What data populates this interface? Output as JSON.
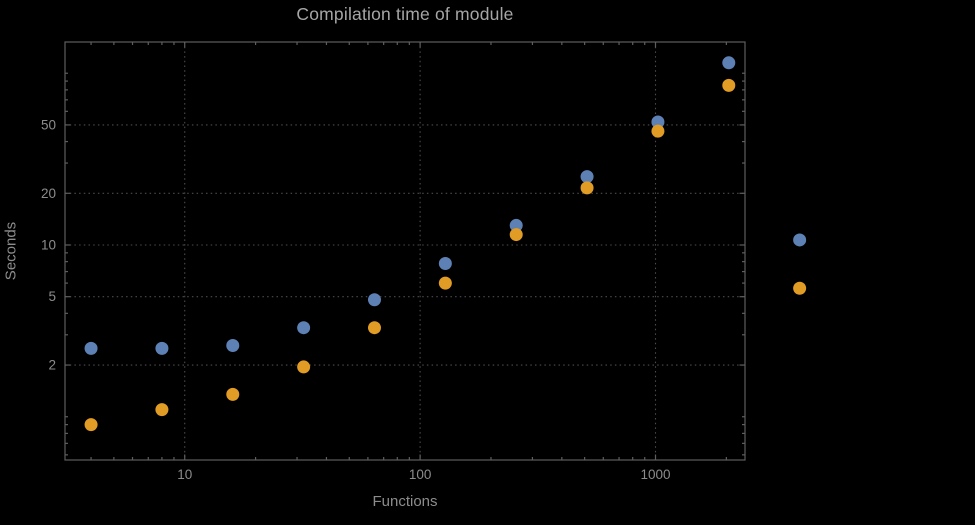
{
  "chart_data": {
    "type": "scatter",
    "title": "Compilation time of module",
    "xlabel": "Functions",
    "ylabel": "Seconds",
    "x_scale": "log",
    "y_scale": "log",
    "xlim": [
      3.1,
      2400
    ],
    "ylim": [
      0.56,
      152
    ],
    "grid": true,
    "legend": "none",
    "x_ticks": [
      {
        "value": 10,
        "label": "10"
      },
      {
        "value": 100,
        "label": "100"
      },
      {
        "value": 1000,
        "label": "1000"
      }
    ],
    "y_ticks": [
      {
        "value": 2,
        "label": "2"
      },
      {
        "value": 5,
        "label": "5"
      },
      {
        "value": 10,
        "label": "10"
      },
      {
        "value": 20,
        "label": "20"
      },
      {
        "value": 50,
        "label": "50"
      }
    ],
    "x": [
      4,
      8,
      16,
      32,
      64,
      128,
      256,
      512,
      1024,
      2048,
      4096
    ],
    "series": [
      {
        "name": "blue",
        "color": "#5E81B5",
        "values": [
          2.5,
          2.5,
          2.6,
          3.3,
          4.8,
          7.8,
          13,
          25,
          52,
          115,
          10.7
        ]
      },
      {
        "name": "orange",
        "color": "#E09C24",
        "values": [
          0.9,
          1.1,
          1.35,
          1.95,
          3.3,
          6.0,
          11.5,
          21.5,
          46,
          85,
          5.6
        ]
      }
    ],
    "marker_radius_px": 6.5
  },
  "colors": {
    "background": "#000000",
    "frame": "#5e5e5e",
    "grid": "#4c4c4c",
    "tick_labels": "#8c8c8c",
    "axis_labels": "#8c8c8c",
    "title": "#a6a6a6"
  }
}
